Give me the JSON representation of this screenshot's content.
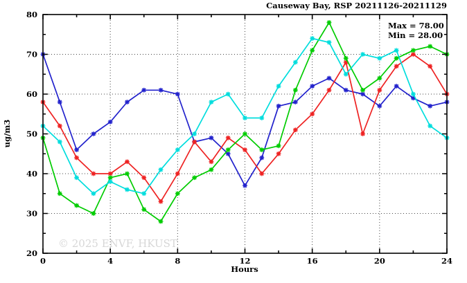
{
  "chart_data": {
    "type": "line",
    "title": "Causeway Bay, RSP 20211126-20211129",
    "xlabel": "Hours",
    "ylabel": "ug/m3",
    "stats": {
      "max": "Max = 78.00",
      "min": "Min = 28.00"
    },
    "watermark": "© 2025  ENVF, HKUST",
    "xlim": [
      0,
      24
    ],
    "ylim": [
      20,
      80
    ],
    "x_major_ticks": [
      0,
      4,
      8,
      12,
      16,
      20,
      24
    ],
    "x_tick_step": 2,
    "y_major_ticks": [
      20,
      30,
      40,
      50,
      60,
      70,
      80
    ],
    "y_tick_step": 5,
    "grid_x": [
      4,
      8,
      12,
      16,
      20
    ],
    "grid_y": [
      30,
      40,
      50,
      60,
      70
    ],
    "legend": "none",
    "x": [
      0,
      1,
      2,
      3,
      4,
      5,
      6,
      7,
      8,
      9,
      10,
      11,
      12,
      13,
      14,
      15,
      16,
      17,
      18,
      19,
      20,
      21,
      22,
      23,
      24
    ],
    "series": [
      {
        "name": "series-blue",
        "color": "#2222cc",
        "values": [
          70,
          58,
          46,
          50,
          53,
          58,
          61,
          61,
          60,
          48,
          49,
          45,
          37,
          44,
          57,
          58,
          62,
          64,
          61,
          60,
          57,
          62,
          59,
          57,
          58
        ]
      },
      {
        "name": "series-red",
        "color": "#ee2222",
        "values": [
          58,
          52,
          44,
          40,
          40,
          43,
          39,
          33,
          40,
          48,
          43,
          49,
          46,
          40,
          45,
          51,
          55,
          61,
          68,
          50,
          61,
          67,
          70,
          67,
          60
        ]
      },
      {
        "name": "series-green",
        "color": "#00cc00",
        "values": [
          49,
          35,
          32,
          30,
          39,
          40,
          31,
          28,
          35,
          39,
          41,
          46,
          50,
          46,
          47,
          61,
          71,
          78,
          69,
          61,
          64,
          69,
          71,
          72,
          70
        ]
      },
      {
        "name": "series-cyan",
        "color": "#00dddd",
        "values": [
          52,
          48,
          39,
          35,
          38,
          36,
          35,
          41,
          46,
          50,
          58,
          60,
          54,
          54,
          62,
          68,
          74,
          73,
          65,
          70,
          69,
          71,
          60,
          52,
          49
        ]
      }
    ]
  }
}
